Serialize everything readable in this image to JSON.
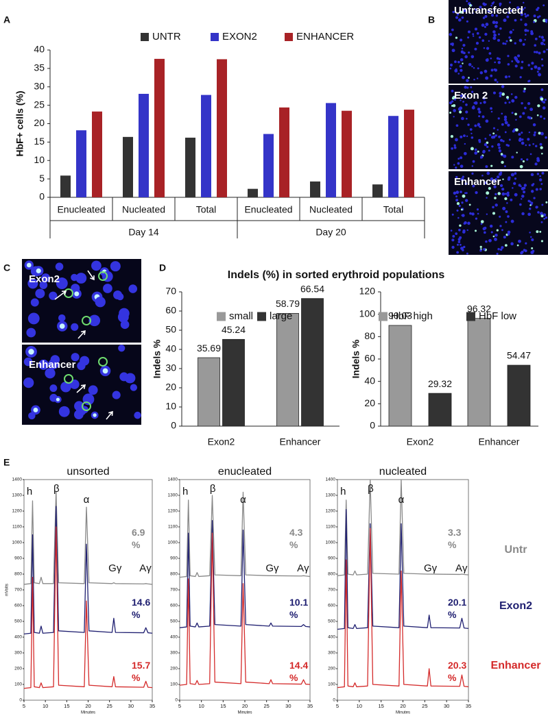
{
  "panel_labels": [
    "A",
    "B",
    "C",
    "D",
    "E"
  ],
  "images_b": [
    "Untransfected",
    "Exon 2",
    "Enhancer"
  ],
  "images_c": [
    "Exon2",
    "Enhancer"
  ],
  "d_title": "Indels (%) in sorted erythroid populations",
  "peak_labels": [
    "h",
    "β",
    "α",
    "Gγ",
    "Aγ"
  ],
  "chart_data": [
    {
      "type": "bar",
      "y_label": "HbF+ cells (%)",
      "categories": [
        "Enucleated",
        "Nucleated",
        "Total",
        "Enucleated",
        "Nucleated",
        "Total"
      ],
      "groups": [
        "Day 14",
        "Day 20"
      ],
      "series": [
        {
          "name": "UNTR",
          "color": "#333333",
          "values": [
            5.9,
            16.4,
            16.2,
            2.3,
            4.3,
            3.5
          ]
        },
        {
          "name": "EXON2",
          "color": "#3434c8",
          "values": [
            18.2,
            28.1,
            27.8,
            17.2,
            25.6,
            22.1
          ]
        },
        {
          "name": "ENHANCER",
          "color": "#a82226",
          "values": [
            23.3,
            37.6,
            37.5,
            24.4,
            23.5,
            23.8
          ]
        }
      ],
      "ylim": [
        0,
        40
      ],
      "yticks": [
        0,
        5,
        10,
        15,
        20,
        25,
        30,
        35,
        40
      ]
    },
    {
      "type": "bar",
      "y_label": "Indels %",
      "categories": [
        "Exon2",
        "Enhancer"
      ],
      "data_labels": true,
      "series": [
        {
          "name": "small",
          "color": "#999999",
          "values": [
            35.69,
            58.79
          ]
        },
        {
          "name": "large",
          "color": "#333333",
          "values": [
            45.24,
            66.54
          ]
        }
      ],
      "ylim": [
        0,
        70
      ],
      "yticks": [
        0,
        10,
        20,
        30,
        40,
        50,
        60,
        70
      ]
    },
    {
      "type": "bar",
      "y_label": "Indels %",
      "categories": [
        "Exon2",
        "Enhancer"
      ],
      "data_labels": true,
      "series": [
        {
          "name": "HbF high",
          "color": "#999999",
          "values": [
            90.03,
            96.32
          ]
        },
        {
          "name": "HbF low",
          "color": "#333333",
          "values": [
            29.32,
            54.47
          ]
        }
      ],
      "ylim": [
        0,
        120
      ],
      "yticks": [
        0,
        20,
        40,
        60,
        80,
        100,
        120
      ]
    },
    {
      "type": "line",
      "title": "unsorted",
      "y_label": "mVolts",
      "x_label": "Minutes",
      "x": [
        5,
        6.6,
        7,
        7.4,
        8.6,
        9,
        9.4,
        11.9,
        12.5,
        13.1,
        19.1,
        19.6,
        20.2,
        25.6,
        26,
        26.4,
        33,
        33.5,
        34,
        35
      ],
      "series": [
        {
          "name": "Untr",
          "color": "#888888",
          "annotation": "6.9 %",
          "values": [
            735,
            740,
            1265,
            745,
            740,
            780,
            740,
            740,
            1325,
            745,
            740,
            1225,
            745,
            740,
            745,
            740,
            738,
            740,
            738,
            735
          ]
        },
        {
          "name": "Exon2",
          "color": "#1e1e70",
          "annotation": "14.6 %",
          "values": [
            420,
            425,
            1050,
            430,
            425,
            470,
            425,
            430,
            1230,
            440,
            430,
            990,
            440,
            430,
            520,
            430,
            428,
            460,
            428,
            425
          ]
        },
        {
          "name": "Enhancer",
          "color": "#d42a2a",
          "annotation": "15.7 %",
          "values": [
            75,
            80,
            780,
            85,
            80,
            110,
            80,
            85,
            1100,
            95,
            85,
            630,
            95,
            85,
            150,
            85,
            82,
            120,
            82,
            80
          ]
        }
      ],
      "xlim": [
        5,
        35
      ],
      "xticks": [
        5,
        10,
        15,
        20,
        25,
        30,
        35
      ],
      "ylim": [
        0,
        1400
      ],
      "yticks": [
        0,
        100,
        200,
        300,
        400,
        500,
        600,
        700,
        800,
        900,
        1000,
        1100,
        1200,
        1300,
        1400
      ]
    },
    {
      "type": "line",
      "title": "enucleated",
      "x_label": "Minutes",
      "x": [
        5,
        6.6,
        7,
        7.4,
        8.6,
        9,
        9.4,
        11.9,
        12.5,
        13.1,
        19.1,
        19.6,
        20.2,
        25.6,
        26,
        26.4,
        33,
        33.5,
        34,
        35
      ],
      "series": [
        {
          "name": "Untr",
          "color": "#888888",
          "annotation": "4.3 %",
          "values": [
            780,
            785,
            1270,
            790,
            785,
            810,
            785,
            790,
            1300,
            795,
            790,
            1320,
            795,
            790,
            790,
            790,
            788,
            790,
            788,
            785
          ]
        },
        {
          "name": "Exon2",
          "color": "#1e1e70",
          "annotation": "10.1 %",
          "values": [
            460,
            465,
            1060,
            470,
            465,
            490,
            465,
            470,
            1140,
            480,
            470,
            1080,
            480,
            470,
            490,
            470,
            468,
            480,
            468,
            465
          ]
        },
        {
          "name": "Enhancer",
          "color": "#d42a2a",
          "annotation": "14.4 %",
          "values": [
            95,
            100,
            770,
            105,
            100,
            125,
            100,
            105,
            1060,
            115,
            105,
            740,
            115,
            105,
            130,
            105,
            102,
            130,
            102,
            100
          ]
        }
      ],
      "xlim": [
        5,
        35
      ],
      "xticks": [
        5,
        10,
        15,
        20,
        25,
        30,
        35
      ],
      "ylim": [
        0,
        1400
      ],
      "yticks": [
        0,
        100,
        200,
        300,
        400,
        500,
        600,
        700,
        800,
        900,
        1000,
        1100,
        1200,
        1300,
        1400
      ]
    },
    {
      "type": "line",
      "title": "nucleated",
      "x_label": "Minutes",
      "x": [
        5,
        6.6,
        7,
        7.4,
        8.6,
        9,
        9.4,
        11.9,
        12.5,
        13.1,
        19.1,
        19.6,
        20.2,
        25.6,
        26,
        26.4,
        33,
        33.5,
        34,
        35
      ],
      "series": [
        {
          "name": "Untr",
          "color": "#888888",
          "annotation": "3.3 %",
          "values": [
            790,
            795,
            1270,
            800,
            795,
            820,
            795,
            800,
            1400,
            805,
            800,
            1400,
            805,
            800,
            800,
            800,
            798,
            800,
            798,
            795
          ]
        },
        {
          "name": "Exon2",
          "color": "#1e1e70",
          "annotation": "20.1 %",
          "values": [
            450,
            455,
            1210,
            460,
            455,
            480,
            455,
            460,
            1120,
            470,
            460,
            1120,
            470,
            460,
            540,
            460,
            458,
            520,
            458,
            455
          ]
        },
        {
          "name": "Enhancer",
          "color": "#d42a2a",
          "annotation": "20.3 %",
          "values": [
            80,
            85,
            890,
            90,
            85,
            110,
            85,
            90,
            1090,
            100,
            90,
            820,
            100,
            90,
            200,
            90,
            88,
            160,
            88,
            85
          ]
        }
      ],
      "xlim": [
        5,
        35
      ],
      "xticks": [
        5,
        10,
        15,
        20,
        25,
        30,
        35
      ],
      "ylim": [
        0,
        1400
      ],
      "yticks": [
        0,
        100,
        200,
        300,
        400,
        500,
        600,
        700,
        800,
        900,
        1000,
        1100,
        1200,
        1300,
        1400
      ]
    }
  ]
}
